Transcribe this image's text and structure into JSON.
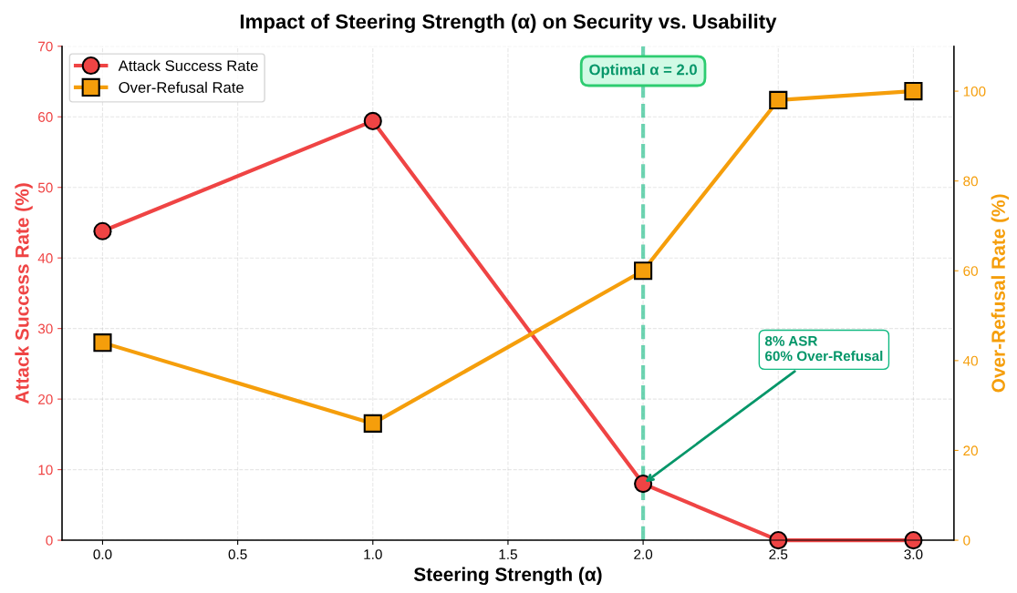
{
  "chart_data": {
    "type": "line",
    "title": "Impact of Steering Strength (α) on Security vs. Usability",
    "xlabel": "Steering Strength (α)",
    "ylabel": "Attack Success Rate (%)",
    "y2label": "Over-Refusal Rate (%)",
    "x": [
      0.0,
      1.0,
      2.0,
      2.5,
      3.0
    ],
    "series": [
      {
        "name": "Attack Success Rate",
        "color": "#ef4444",
        "values": [
          43.8,
          59.4,
          8,
          0,
          0
        ],
        "marker": "circle"
      },
      {
        "name": "Over-Refusal Rate",
        "color": "#f59e0b",
        "values": [
          44,
          26,
          60,
          98,
          100
        ],
        "marker": "square",
        "axis": "y2"
      }
    ],
    "xlim": [
      -0.15,
      3.15
    ],
    "xticks": [
      {
        "value": 0,
        "label": "0.0"
      },
      {
        "value": 0.5,
        "label": "0.5"
      },
      {
        "value": 1,
        "label": "1.0"
      },
      {
        "value": 1.5,
        "label": "1.5"
      },
      {
        "value": 2,
        "label": "2.0"
      },
      {
        "value": 2.5,
        "label": "2.5"
      },
      {
        "value": 3,
        "label": "3.0"
      }
    ],
    "ylim": [
      0,
      70
    ],
    "yticks": [
      0,
      10,
      20,
      30,
      40,
      50,
      60,
      70
    ],
    "y2lim": [
      0,
      110
    ],
    "y2ticks": [
      0,
      20,
      40,
      60,
      80,
      100
    ],
    "ref_lines": [
      {
        "axis": "x",
        "value": 2.0,
        "label": "Optimal α = 2.0",
        "color": "#10b981",
        "line_style": "dashed"
      }
    ],
    "annotations": [
      {
        "text": "8% ASR\n60% Over-Refusal",
        "x": 2.0,
        "y": 8
      }
    ],
    "grid": true,
    "legend": "top left",
    "line_style": "solid"
  }
}
